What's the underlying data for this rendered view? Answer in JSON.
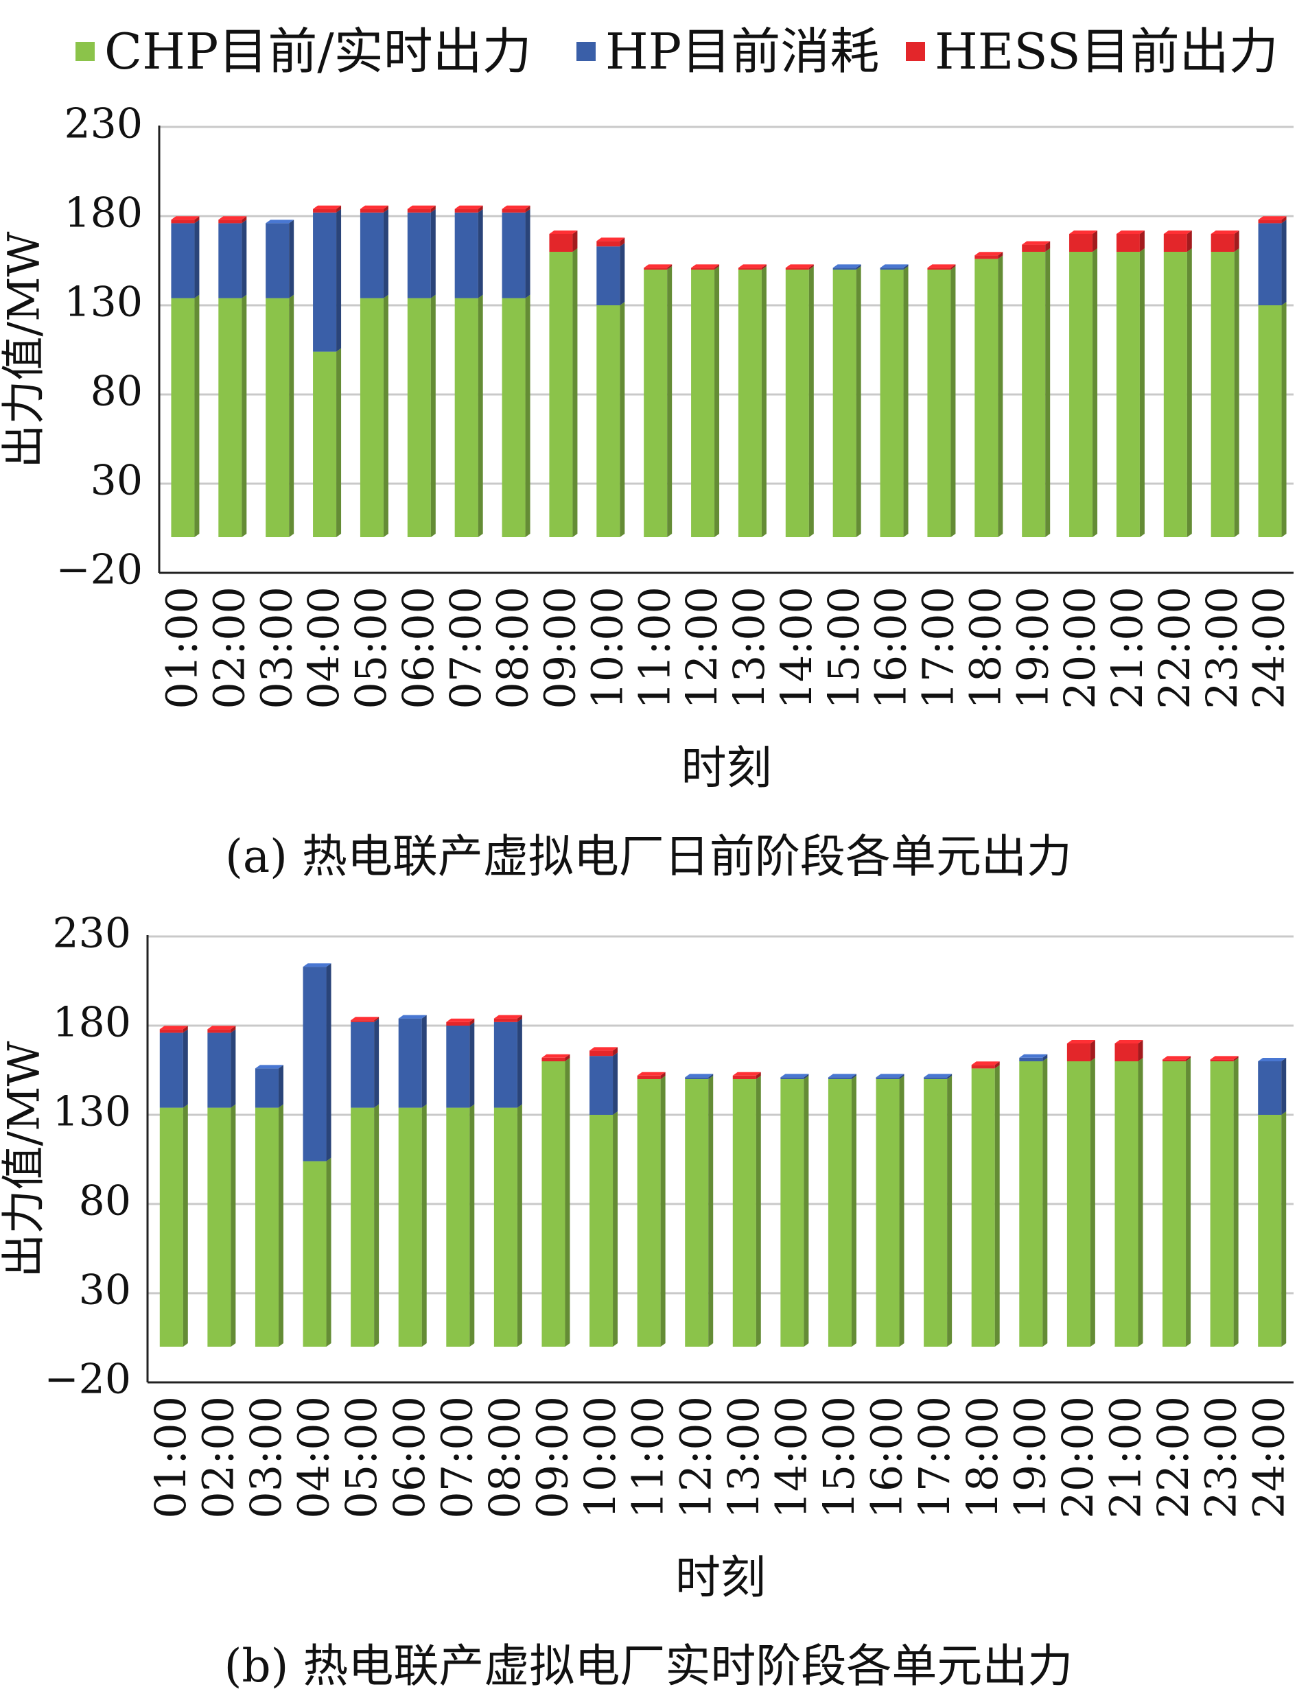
{
  "legend": {
    "items": [
      {
        "label": "CHP目前/实时出力",
        "color": "#8bc34a"
      },
      {
        "label": "HP目前消耗",
        "color": "#3a5fa8"
      },
      {
        "label": "HESS目前出力",
        "color": "#e3262a"
      }
    ]
  },
  "chart_data": [
    {
      "type": "bar",
      "stacked": true,
      "caption": "(a) 热电联产虚拟电厂日前阶段各单元出力",
      "xlabel": "时刻",
      "ylabel": "出力值/MW",
      "yticks": [
        -20,
        30,
        80,
        130,
        180,
        230
      ],
      "ylim": [
        -20,
        230
      ],
      "bar_base": 0,
      "grid": true,
      "legend_position": "top",
      "categories": [
        "01:00",
        "02:00",
        "03:00",
        "04:00",
        "05:00",
        "06:00",
        "07:00",
        "08:00",
        "09:00",
        "10:00",
        "11:00",
        "12:00",
        "13:00",
        "14:00",
        "15:00",
        "16:00",
        "17:00",
        "18:00",
        "19:00",
        "20:00",
        "21:00",
        "22:00",
        "23:00",
        "24:00"
      ],
      "series": [
        {
          "name": "CHP目前/实时出力",
          "color": "#8bc34a",
          "values": [
            134,
            134,
            134,
            104,
            134,
            134,
            134,
            134,
            160,
            130,
            150,
            150,
            150,
            150,
            150,
            150,
            150,
            156,
            160,
            160,
            160,
            160,
            160,
            130
          ]
        },
        {
          "name": "HP目前消耗",
          "color": "#3a5fa8",
          "values": [
            42,
            42,
            42,
            78,
            48,
            48,
            48,
            48,
            0,
            33,
            0,
            0,
            0,
            0,
            1,
            1,
            0,
            0,
            0,
            0,
            0,
            0,
            0,
            46
          ]
        },
        {
          "name": "HESS目前出力",
          "color": "#e3262a",
          "values": [
            2,
            2,
            0,
            2,
            2,
            2,
            2,
            2,
            10,
            3,
            1,
            1,
            1,
            1,
            0,
            0,
            1,
            2,
            4,
            10,
            10,
            10,
            10,
            2
          ]
        }
      ]
    },
    {
      "type": "bar",
      "stacked": true,
      "caption": "(b) 热电联产虚拟电厂实时阶段各单元出力",
      "xlabel": "时刻",
      "ylabel": "出力值/MW",
      "yticks": [
        -20,
        30,
        80,
        130,
        180,
        230
      ],
      "ylim": [
        -20,
        230
      ],
      "bar_base": 0,
      "grid": true,
      "categories": [
        "01:00",
        "02:00",
        "03:00",
        "04:00",
        "05:00",
        "06:00",
        "07:00",
        "08:00",
        "09:00",
        "10:00",
        "11:00",
        "12:00",
        "13:00",
        "14:00",
        "15:00",
        "16:00",
        "17:00",
        "18:00",
        "19:00",
        "20:00",
        "21:00",
        "22:00",
        "23:00",
        "24:00"
      ],
      "series": [
        {
          "name": "CHP目前/实时出力",
          "color": "#8bc34a",
          "values": [
            134,
            134,
            134,
            104,
            134,
            134,
            134,
            134,
            160,
            130,
            150,
            150,
            150,
            150,
            150,
            150,
            150,
            156,
            160,
            160,
            160,
            160,
            160,
            130
          ]
        },
        {
          "name": "HP目前消耗",
          "color": "#3a5fa8",
          "values": [
            42,
            42,
            22,
            109,
            48,
            50,
            46,
            48,
            0,
            33,
            0,
            1,
            0,
            1,
            1,
            1,
            1,
            0,
            2,
            0,
            0,
            0,
            0,
            30
          ]
        },
        {
          "name": "HESS目前出力",
          "color": "#e3262a",
          "values": [
            2,
            2,
            0,
            0,
            1,
            0,
            2,
            2,
            2,
            3,
            2,
            0,
            2,
            0,
            0,
            0,
            0,
            2,
            0,
            10,
            10,
            1,
            1,
            0
          ]
        }
      ]
    }
  ]
}
